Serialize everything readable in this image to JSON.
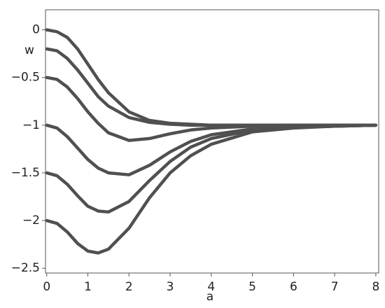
{
  "chart_data": {
    "type": "line",
    "x_label": "a",
    "y_label": "w",
    "x": [
      0,
      0.25,
      0.5,
      0.75,
      1,
      1.25,
      1.5,
      2,
      2.5,
      3,
      3.5,
      4,
      5,
      6,
      7,
      8
    ],
    "series": [
      {
        "color": "#505050",
        "values": [
          0,
          -0.02,
          -0.08,
          -0.2,
          -0.36,
          -0.52,
          -0.66,
          -0.86,
          -0.95,
          -0.98,
          -0.99,
          -1.0,
          -1.0,
          -1.0,
          -1.0,
          -1.0
        ]
      },
      {
        "color": "#505050",
        "values": [
          -0.2,
          -0.22,
          -0.3,
          -0.42,
          -0.56,
          -0.7,
          -0.8,
          -0.92,
          -0.97,
          -0.99,
          -1.0,
          -1.0,
          -1.0,
          -1.0,
          -1.0,
          -1.0
        ]
      },
      {
        "color": "#505050",
        "values": [
          -0.5,
          -0.52,
          -0.6,
          -0.72,
          -0.86,
          -0.98,
          -1.08,
          -1.16,
          -1.14,
          -1.09,
          -1.05,
          -1.03,
          -1.01,
          -1.0,
          -1.0,
          -1.0
        ]
      },
      {
        "color": "#505050",
        "values": [
          -1,
          -1.03,
          -1.12,
          -1.24,
          -1.36,
          -1.45,
          -1.5,
          -1.52,
          -1.42,
          -1.28,
          -1.17,
          -1.1,
          -1.04,
          -1.02,
          -1.01,
          -1.0
        ]
      },
      {
        "color": "#505050",
        "values": [
          -1.5,
          -1.53,
          -1.62,
          -1.74,
          -1.85,
          -1.9,
          -1.91,
          -1.8,
          -1.58,
          -1.38,
          -1.23,
          -1.14,
          -1.05,
          -1.02,
          -1.01,
          -1.0
        ]
      },
      {
        "color": "#505050",
        "values": [
          -2,
          -2.03,
          -2.12,
          -2.24,
          -2.32,
          -2.34,
          -2.3,
          -2.08,
          -1.76,
          -1.5,
          -1.32,
          -1.2,
          -1.07,
          -1.03,
          -1.01,
          -1.0
        ]
      }
    ],
    "xlim": [
      -0.03,
      8.07
    ],
    "ylim": [
      -2.55,
      0.21
    ],
    "xticks": [
      0,
      1,
      2,
      3,
      4,
      5,
      6,
      7,
      8
    ],
    "yticks": [
      0,
      {
        "value": -0.5,
        "label": "−0.5"
      },
      {
        "value": -1,
        "label": "−1"
      },
      {
        "value": -1.5,
        "label": "−1.5"
      },
      {
        "value": -2,
        "label": "−2"
      },
      {
        "value": -2.5,
        "label": "−2.5"
      }
    ]
  }
}
